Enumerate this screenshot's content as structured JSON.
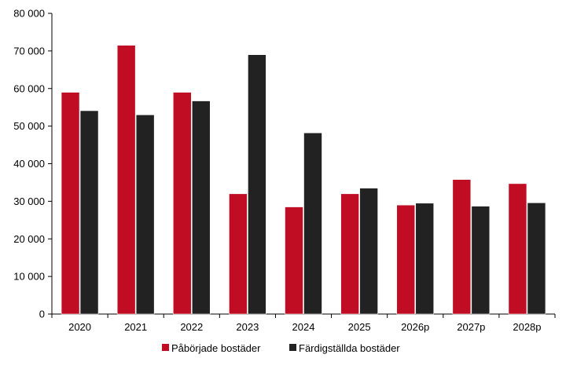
{
  "chart_data": {
    "type": "bar",
    "title": "",
    "xlabel": "",
    "ylabel": "",
    "categories": [
      "2020",
      "2021",
      "2022",
      "2023",
      "2024",
      "2025",
      "2026p",
      "2027p",
      "2028p"
    ],
    "series": [
      {
        "name": "Påbörjade bostäder",
        "color": "#c00d23",
        "values": [
          59000,
          71500,
          59000,
          32000,
          28500,
          32000,
          29000,
          35800,
          34700
        ]
      },
      {
        "name": "Färdigställda bostäder",
        "color": "#222222",
        "values": [
          54100,
          53000,
          56700,
          69000,
          48200,
          33500,
          29500,
          28700,
          29600
        ]
      }
    ],
    "ylim": [
      0,
      80000
    ],
    "yticks": [
      0,
      10000,
      20000,
      30000,
      40000,
      50000,
      60000,
      70000,
      80000
    ],
    "ytick_labels": [
      "0",
      "10 000",
      "20 000",
      "30 000",
      "40 000",
      "50 000",
      "60 000",
      "70 000",
      "80 000"
    ],
    "grid": false,
    "legend_position": "bottom-center"
  }
}
